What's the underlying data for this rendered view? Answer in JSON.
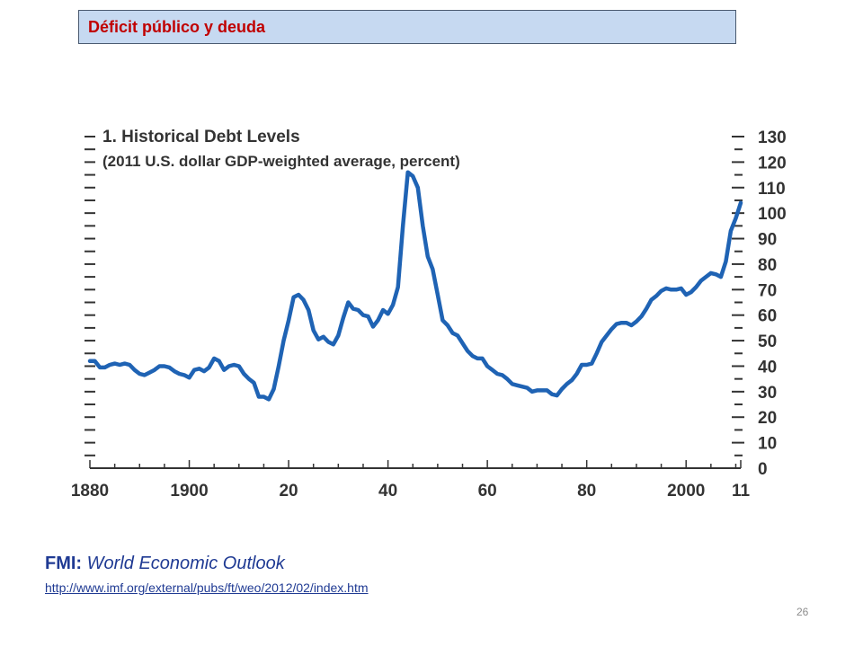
{
  "slide": {
    "heading": "Déficit público y deuda",
    "source_label": "FMI:",
    "source_title": "World Economic Outlook",
    "source_url": "http://www.imf.org/external/pubs/ft/weo/2012/02/index.htm",
    "page_number": "26"
  },
  "colors": {
    "line": "#1f63b4",
    "heading_bg": "#c6d9f1",
    "heading_text": "#c00000",
    "link": "#1f3a93"
  },
  "chart_data": {
    "type": "line",
    "title": "1. Historical Debt Levels",
    "subtitle": "(2011 U.S. dollar GDP-weighted average, percent)",
    "xlabel": "",
    "ylabel": "",
    "xlim": [
      1880,
      2011
    ],
    "ylim": [
      0,
      130
    ],
    "x_ticks": [
      {
        "value": 1880,
        "label": "1880"
      },
      {
        "value": 1900,
        "label": "1900"
      },
      {
        "value": 1920,
        "label": "20"
      },
      {
        "value": 1940,
        "label": "40"
      },
      {
        "value": 1960,
        "label": "60"
      },
      {
        "value": 1980,
        "label": "80"
      },
      {
        "value": 2000,
        "label": "2000"
      },
      {
        "value": 2011,
        "label": "11"
      }
    ],
    "y_ticks": [
      0,
      10,
      20,
      30,
      40,
      50,
      60,
      70,
      80,
      90,
      100,
      110,
      120,
      130
    ],
    "y_axis_side": "right",
    "grid": false,
    "series": [
      {
        "name": "",
        "x": [
          1880,
          1881,
          1882,
          1883,
          1884,
          1885,
          1886,
          1887,
          1888,
          1889,
          1890,
          1891,
          1892,
          1893,
          1894,
          1895,
          1896,
          1897,
          1898,
          1899,
          1900,
          1901,
          1902,
          1903,
          1904,
          1905,
          1906,
          1907,
          1908,
          1909,
          1910,
          1911,
          1912,
          1913,
          1914,
          1915,
          1916,
          1917,
          1918,
          1919,
          1920,
          1921,
          1922,
          1923,
          1924,
          1925,
          1926,
          1927,
          1928,
          1929,
          1930,
          1931,
          1932,
          1933,
          1934,
          1935,
          1936,
          1937,
          1938,
          1939,
          1940,
          1941,
          1942,
          1943,
          1944,
          1945,
          1946,
          1947,
          1948,
          1949,
          1950,
          1951,
          1952,
          1953,
          1954,
          1955,
          1956,
          1957,
          1958,
          1959,
          1960,
          1961,
          1962,
          1963,
          1964,
          1965,
          1966,
          1967,
          1968,
          1969,
          1970,
          1971,
          1972,
          1973,
          1974,
          1975,
          1976,
          1977,
          1978,
          1979,
          1980,
          1981,
          1982,
          1983,
          1984,
          1985,
          1986,
          1987,
          1988,
          1989,
          1990,
          1991,
          1992,
          1993,
          1994,
          1995,
          1996,
          1997,
          1998,
          1999,
          2000,
          2001,
          2002,
          2003,
          2004,
          2005,
          2006,
          2007,
          2008,
          2009,
          2010,
          2011
        ],
        "values": [
          42,
          42,
          39.5,
          39.5,
          40.5,
          41,
          40.5,
          41,
          40.5,
          38.5,
          37,
          36.5,
          37.5,
          38.5,
          40,
          40,
          39.5,
          38,
          37,
          36.5,
          35.5,
          38.5,
          39,
          38,
          39.5,
          43,
          42,
          38.5,
          40,
          40.5,
          40,
          37,
          35,
          33.5,
          28,
          28,
          27,
          31,
          40,
          50,
          58,
          67,
          68,
          66,
          62,
          54,
          50.5,
          51.5,
          49.5,
          48.5,
          52,
          59,
          65,
          62.5,
          62,
          60,
          59.5,
          55.5,
          58,
          62,
          60.5,
          64,
          71,
          95,
          116,
          114.5,
          110,
          95,
          83,
          78,
          68,
          58,
          56,
          53,
          52,
          49,
          46,
          44,
          43,
          43,
          40,
          38.5,
          37,
          36.5,
          35,
          33,
          32.5,
          32,
          31.5,
          30,
          30.5,
          30.5,
          30.5,
          29,
          28.5,
          31,
          33,
          34.5,
          37,
          40.5,
          40.5,
          41,
          45,
          49.5,
          52,
          54.5,
          56.5,
          57,
          57,
          56,
          57.5,
          59.5,
          62.5,
          66,
          67.5,
          69.5,
          70.5,
          70,
          70,
          70.5,
          68,
          69,
          71,
          73.5,
          75,
          76.5,
          76,
          75,
          81,
          93,
          98,
          104
        ]
      }
    ]
  }
}
